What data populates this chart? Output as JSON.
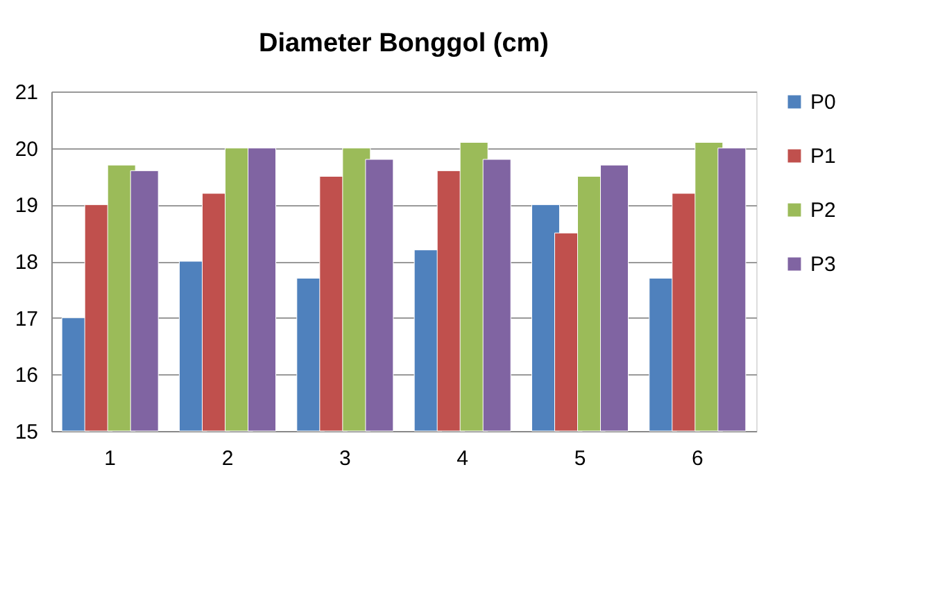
{
  "chart_data": {
    "type": "bar",
    "title": "Diameter Bonggol (cm)",
    "categories": [
      "1",
      "2",
      "3",
      "4",
      "5",
      "6"
    ],
    "series": [
      {
        "name": "P0",
        "color": "#4f81bd",
        "values": [
          17,
          18,
          17.7,
          18.2,
          19,
          17.7
        ]
      },
      {
        "name": "P1",
        "color": "#c0504d",
        "values": [
          19,
          19.2,
          19.5,
          19.6,
          18.5,
          19.2
        ]
      },
      {
        "name": "P2",
        "color": "#9bbb59",
        "values": [
          19.7,
          20,
          20,
          20.1,
          19.5,
          20.1
        ]
      },
      {
        "name": "P3",
        "color": "#8064a2",
        "values": [
          19.6,
          20,
          19.8,
          19.8,
          19.7,
          20
        ]
      }
    ],
    "ylim": [
      15,
      21
    ],
    "yticks": [
      15,
      16,
      17,
      18,
      19,
      20,
      21
    ],
    "grid": "y",
    "legend": "right"
  }
}
